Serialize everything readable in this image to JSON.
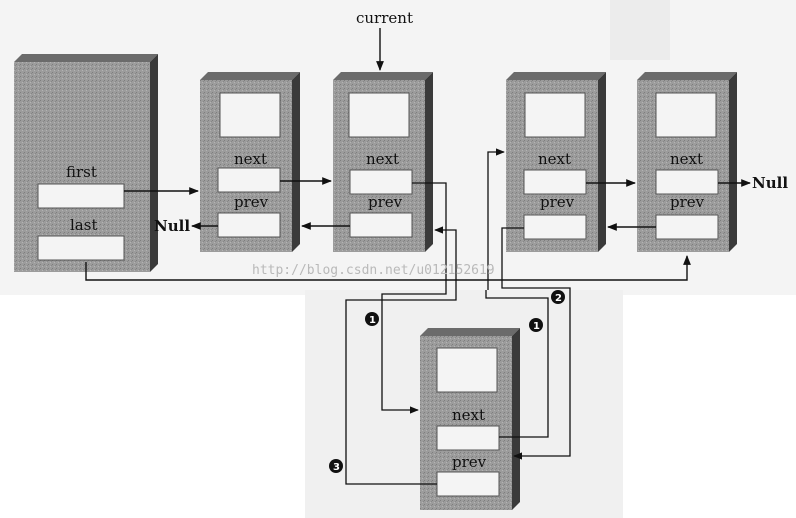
{
  "labels": {
    "current": "current",
    "first": "first",
    "last": "last",
    "next": "next",
    "prev": "prev",
    "null_left": "Null",
    "null_right": "Null"
  },
  "watermark": "http://blog.csdn.net/u012152619",
  "step_markers": {
    "a": "1",
    "b": "1",
    "c": "2",
    "d": "3"
  }
}
